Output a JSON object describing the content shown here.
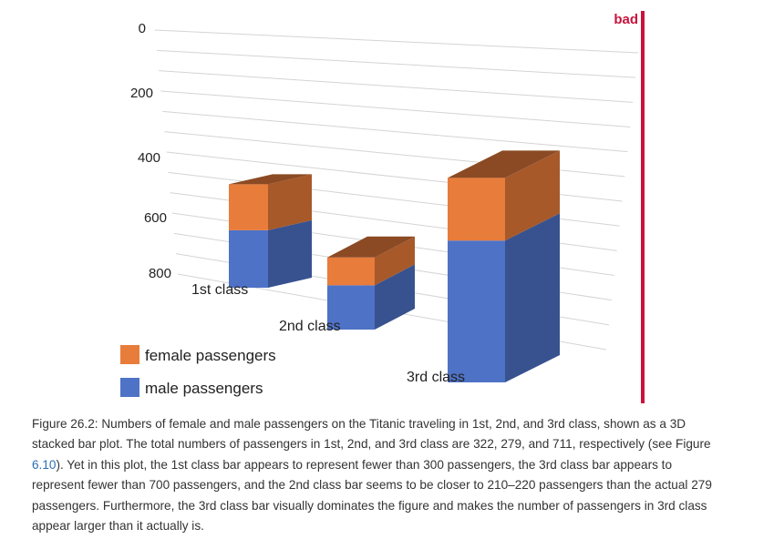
{
  "chart_data": {
    "type": "bar",
    "style": "3d-stacked",
    "categories": [
      "1st class",
      "2nd class",
      "3rd class"
    ],
    "series": [
      {
        "name": "male passengers",
        "color": "#4e72c6",
        "values": [
          179,
          171,
          493
        ]
      },
      {
        "name": "female passengers",
        "color": "#e87c3a",
        "values": [
          143,
          108,
          218
        ]
      }
    ],
    "yticks": [
      "0",
      "200",
      "400",
      "600",
      "800"
    ],
    "ylim": [
      0,
      800
    ],
    "legend": "bottom-left",
    "badge": {
      "text": "bad",
      "color": "#c8143c"
    }
  },
  "caption": {
    "part1": "Figure 26.2: Numbers of female and male passengers on the Titanic traveling in 1st, 2nd, and 3rd class, shown as a 3D stacked bar plot. The total numbers of passengers in 1st, 2nd, and 3rd class are 322, 279, and 711, respectively (see Figure ",
    "link": "6.10",
    "part2": "). Yet in this plot, the 1st class bar appears to represent fewer than 300 passengers, the 3rd class bar appears to represent fewer than 700 passengers, and the 2nd class bar seems to be closer to 210–220 passengers than the actual 279 passengers. Furthermore, the 3rd class bar visually dominates the figure and makes the number of passengers in 3rd class appear larger than it actually is."
  }
}
